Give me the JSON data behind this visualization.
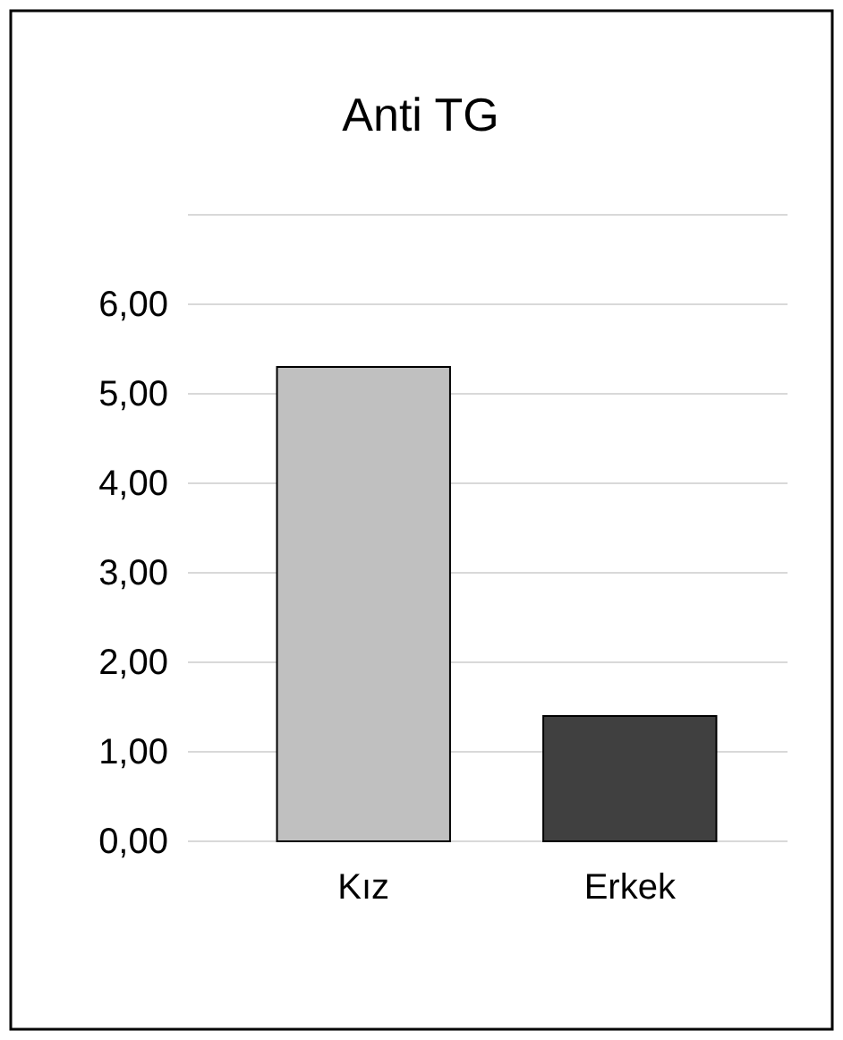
{
  "chart_data": {
    "type": "bar",
    "title": "Anti TG",
    "categories": [
      "Kız",
      "Erkek"
    ],
    "values": [
      5.3,
      1.4
    ],
    "colors": [
      "#c0c0c0",
      "#404040"
    ],
    "ylim": [
      0,
      7
    ],
    "yticks": [
      {
        "value": 0,
        "label": "0,00"
      },
      {
        "value": 1,
        "label": "1,00"
      },
      {
        "value": 2,
        "label": "2,00"
      },
      {
        "value": 3,
        "label": "3,00"
      },
      {
        "value": 4,
        "label": "4,00"
      },
      {
        "value": 5,
        "label": "5,00"
      },
      {
        "value": 6,
        "label": "6,00"
      },
      {
        "value": 7,
        "label": null
      }
    ],
    "grid": true
  }
}
